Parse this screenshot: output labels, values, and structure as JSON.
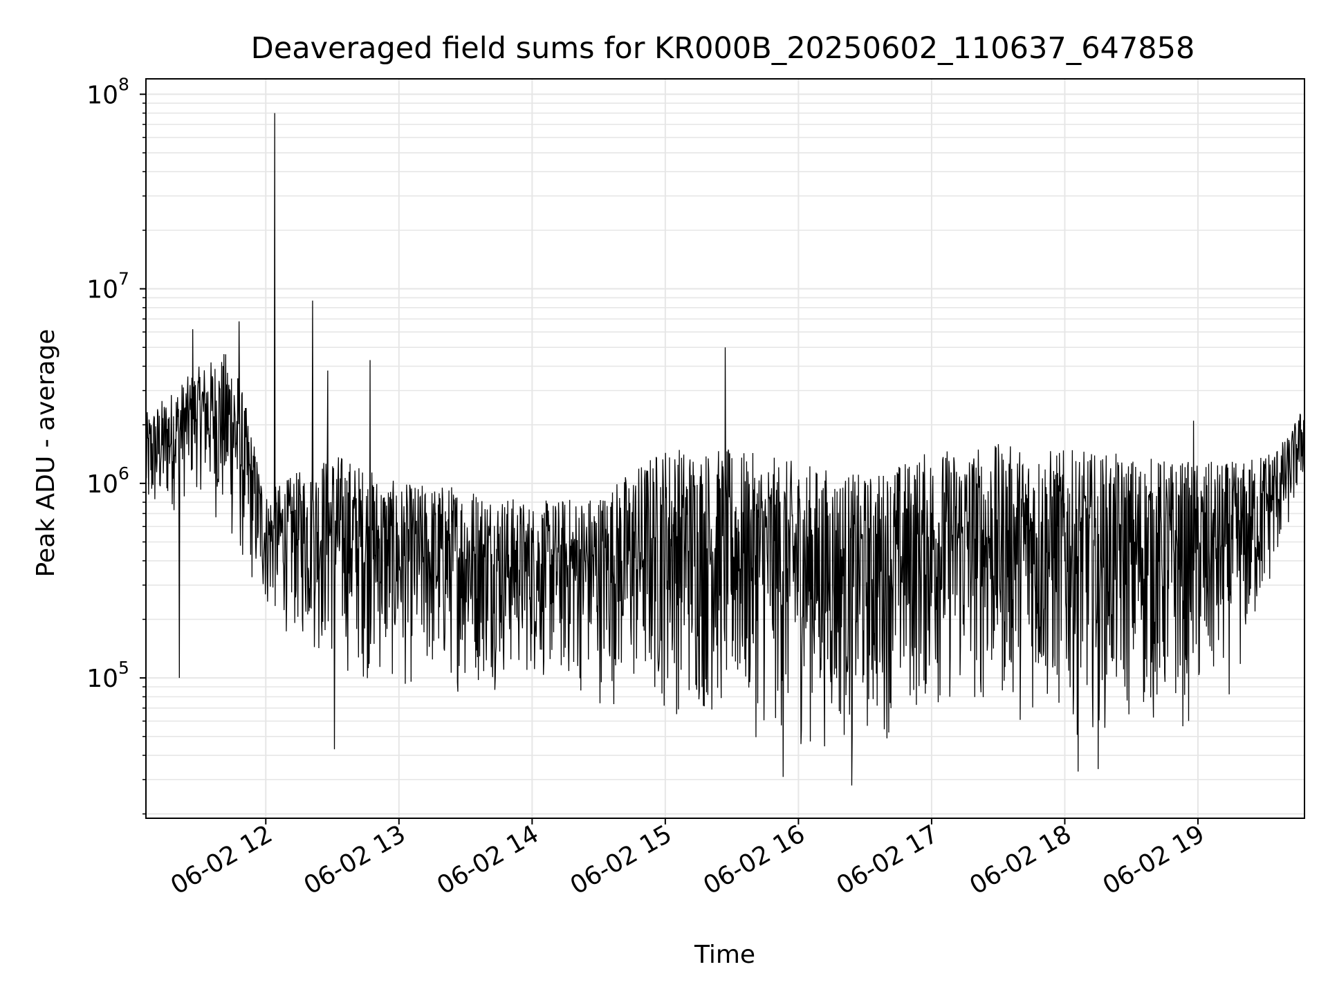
{
  "chart_data": {
    "type": "line",
    "title": "Deaveraged field sums for KR000B_20250602_110637_647858",
    "xlabel": "Time",
    "ylabel": "Peak ADU - average",
    "yscale": "log",
    "ylim": [
      19000,
      120000000
    ],
    "xlim": [
      "2025-06-02 11:06",
      "2025-06-02 19:48"
    ],
    "grid": true,
    "line_color": "#000000",
    "grid_color": "#e6e6e6",
    "x_ticks": [
      {
        "value": "2025-06-02 12:00",
        "label": "06-02 12"
      },
      {
        "value": "2025-06-02 13:00",
        "label": "06-02 13"
      },
      {
        "value": "2025-06-02 14:00",
        "label": "06-02 14"
      },
      {
        "value": "2025-06-02 15:00",
        "label": "06-02 15"
      },
      {
        "value": "2025-06-02 16:00",
        "label": "06-02 16"
      },
      {
        "value": "2025-06-02 17:00",
        "label": "06-02 17"
      },
      {
        "value": "2025-06-02 18:00",
        "label": "06-02 18"
      },
      {
        "value": "2025-06-02 19:00",
        "label": "06-02 19"
      }
    ],
    "y_ticks": [
      {
        "value": 100000,
        "base": "10",
        "exp": "5"
      },
      {
        "value": 1000000,
        "base": "10",
        "exp": "6"
      },
      {
        "value": 10000000,
        "base": "10",
        "exp": "7"
      },
      {
        "value": 100000000,
        "base": "10",
        "exp": "8"
      }
    ],
    "envelope": {
      "description_of_data": "Dense per-frame series; approximate upper/lower envelope of the signal by time",
      "x": [
        "2025-06-02 11:06",
        "2025-06-02 11:30",
        "2025-06-02 11:45",
        "2025-06-02 12:00",
        "2025-06-02 12:30",
        "2025-06-02 13:00",
        "2025-06-02 13:30",
        "2025-06-02 14:00",
        "2025-06-02 14:30",
        "2025-06-02 15:00",
        "2025-06-02 15:30",
        "2025-06-02 16:00",
        "2025-06-02 16:30",
        "2025-06-02 17:00",
        "2025-06-02 17:30",
        "2025-06-02 18:00",
        "2025-06-02 18:30",
        "2025-06-02 19:00",
        "2025-06-02 19:20",
        "2025-06-02 19:40",
        "2025-06-02 19:48"
      ],
      "upper": [
        2300000,
        4000000,
        5000000,
        900000,
        1500000,
        1000000,
        1000000,
        800000,
        900000,
        1600000,
        1500000,
        1300000,
        1100000,
        1500000,
        1600000,
        1500000,
        1400000,
        1300000,
        1300000,
        1700000,
        2600000
      ],
      "lower": [
        500000,
        900000,
        400000,
        200000,
        100000,
        80000,
        80000,
        90000,
        70000,
        60000,
        50000,
        40000,
        40000,
        60000,
        60000,
        50000,
        50000,
        50000,
        90000,
        500000,
        1000000
      ]
    },
    "spikes": [
      {
        "x": "2025-06-02 12:04",
        "y": 80000000
      },
      {
        "x": "2025-06-02 12:21",
        "y": 8700000
      },
      {
        "x": "2025-06-02 11:48",
        "y": 6800000
      },
      {
        "x": "2025-06-02 11:27",
        "y": 6200000
      },
      {
        "x": "2025-06-02 12:28",
        "y": 3800000
      },
      {
        "x": "2025-06-02 12:47",
        "y": 4300000
      },
      {
        "x": "2025-06-02 15:27",
        "y": 5000000
      },
      {
        "x": "2025-06-02 18:58",
        "y": 2100000
      }
    ],
    "dips": [
      {
        "x": "2025-06-02 11:21",
        "y": 100000
      },
      {
        "x": "2025-06-02 12:31",
        "y": 43000
      },
      {
        "x": "2025-06-02 15:53",
        "y": 31000
      },
      {
        "x": "2025-06-02 16:24",
        "y": 28000
      },
      {
        "x": "2025-06-02 18:06",
        "y": 33000
      },
      {
        "x": "2025-06-02 18:15",
        "y": 34000
      }
    ]
  }
}
